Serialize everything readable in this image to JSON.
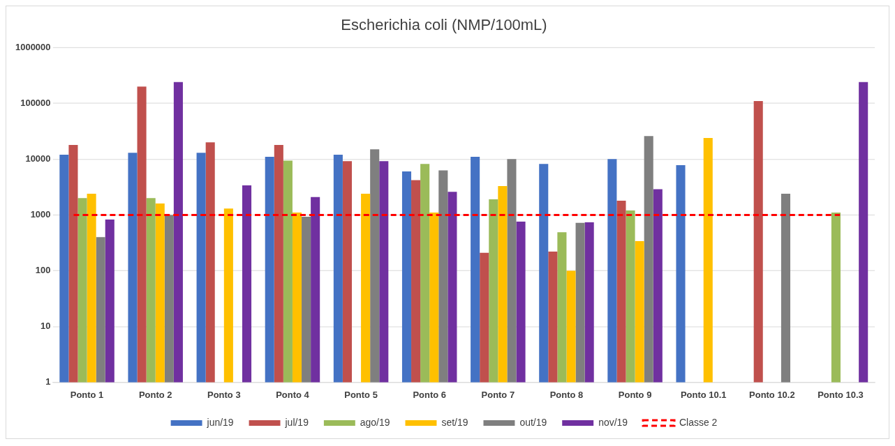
{
  "chart_data": {
    "type": "bar",
    "title": "Escherichia coli (NMP/100mL)",
    "categories": [
      "Ponto 1",
      "Ponto 2",
      "Ponto 3",
      "Ponto 4",
      "Ponto 5",
      "Ponto 6",
      "Ponto 7",
      "Ponto 8",
      "Ponto 9",
      "Ponto 10.1",
      "Ponto 10.2",
      "Ponto 10.3"
    ],
    "series": [
      {
        "name": "jun/19",
        "color": "#4472c4",
        "values": [
          12000,
          13000,
          13000,
          11000,
          12000,
          6000,
          11000,
          8200,
          10000,
          7800,
          null,
          null
        ]
      },
      {
        "name": "jul/19",
        "color": "#c0504d",
        "values": [
          18000,
          200000,
          20000,
          18000,
          9200,
          4200,
          210,
          220,
          1800,
          null,
          110000,
          null
        ]
      },
      {
        "name": "ago/19",
        "color": "#9bbb59",
        "values": [
          2000,
          2000,
          null,
          9400,
          null,
          8200,
          1900,
          490,
          1200,
          null,
          null,
          1100
        ]
      },
      {
        "name": "set/19",
        "color": "#ffc000",
        "values": [
          2400,
          1600,
          1300,
          1100,
          2400,
          1100,
          3300,
          100,
          340,
          24000,
          null,
          null
        ]
      },
      {
        "name": "out/19",
        "color": "#7f7f7f",
        "values": [
          400,
          1000,
          null,
          930,
          15000,
          6300,
          10000,
          720,
          26000,
          null,
          2400,
          null
        ]
      },
      {
        "name": "nov/19",
        "color": "#7030a0",
        "values": [
          830,
          240000,
          3400,
          2100,
          9200,
          2600,
          760,
          740,
          2900,
          null,
          null,
          240000
        ]
      }
    ],
    "ref_lines": [
      {
        "axis": "y",
        "value": 1000,
        "label": "Classe 2",
        "color": "#ff0000",
        "line_style": "dashed"
      }
    ],
    "log": true,
    "ylim": [
      1,
      1000000
    ],
    "yticks": [
      1,
      10,
      100,
      1000,
      10000,
      100000,
      1000000
    ],
    "grid": "y",
    "legend": "bottom"
  }
}
